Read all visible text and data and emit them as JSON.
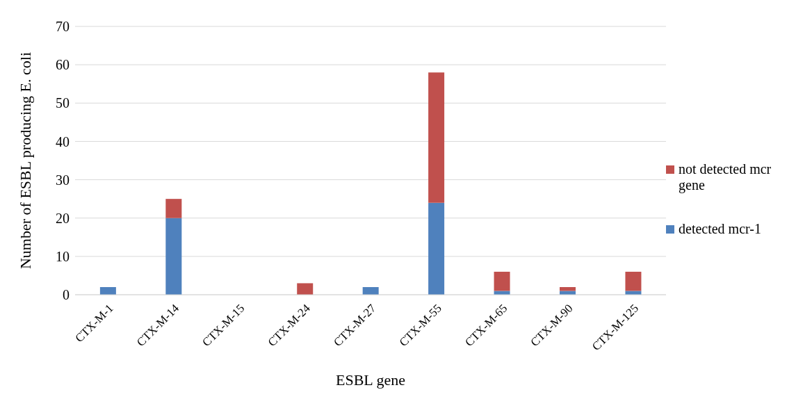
{
  "chart_data": {
    "type": "bar",
    "stacked": true,
    "xlabel": "ESBL gene",
    "ylabel": "Number of ESBL producing E. coli",
    "categories": [
      "CTX-M-1",
      "CTX-M-14",
      "CTX-M-15",
      "CTX-M-24",
      "CTX-M-27",
      "CTX-M-55",
      "CTX-M-65",
      "CTX-M-90",
      "CTX-M-125"
    ],
    "series": [
      {
        "name": "detected mcr-1",
        "color": "#4f81bd",
        "values": [
          2,
          20,
          0,
          0,
          2,
          24,
          1,
          1,
          1
        ]
      },
      {
        "name": "not detected mcr gene",
        "color": "#c0504d",
        "values": [
          0,
          5,
          0,
          3,
          0,
          34,
          5,
          1,
          5
        ]
      }
    ],
    "ylim": [
      0,
      70
    ],
    "yticks": [
      0,
      10,
      20,
      30,
      40,
      50,
      60,
      70
    ],
    "grid": "y",
    "legend": "right"
  }
}
